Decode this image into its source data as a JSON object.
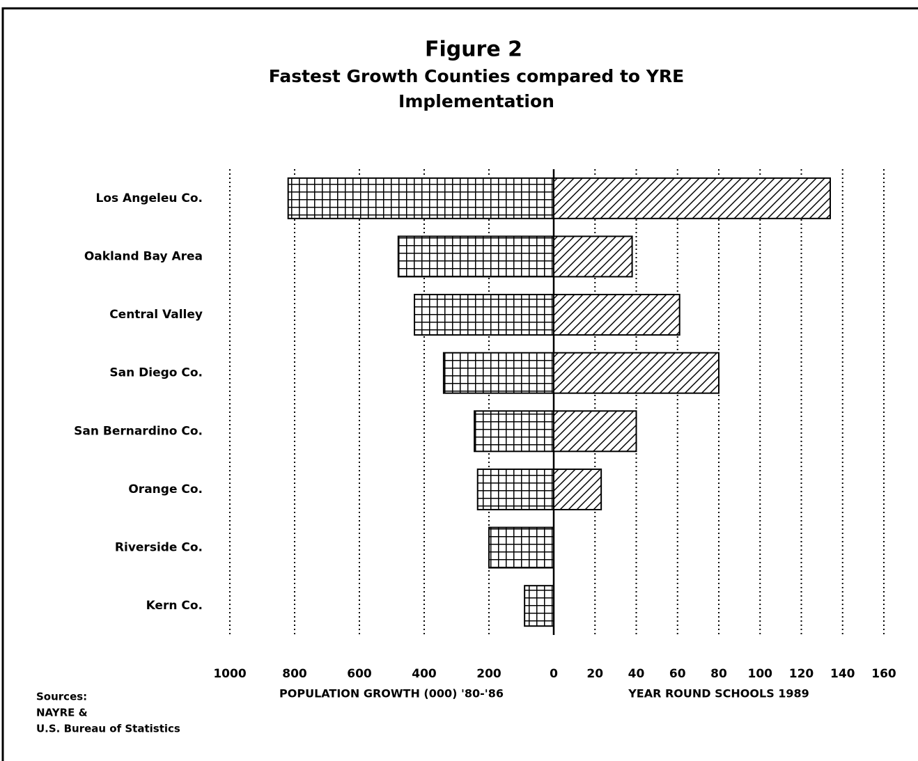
{
  "chart_data": {
    "type": "butterfly_bar",
    "title": "Figure 2",
    "subtitle": [
      "Fastest Growth Counties compared to YRE",
      "Implementation"
    ],
    "categories": [
      "Los Angeleu Co.",
      "Oakland Bay Area",
      "Central Valley",
      "San Diego Co.",
      "San Bernardino Co.",
      "Orange Co.",
      "Riverside Co.",
      "Kern Co."
    ],
    "series": [
      {
        "name": "POPULATION GROWTH (000) '80-'86",
        "color": "#000000",
        "pattern": "crosshatch",
        "axis": "x",
        "values": [
          820,
          480,
          430,
          340,
          245,
          235,
          200,
          90
        ]
      },
      {
        "name": "YEAR ROUND SCHOOLS 1989",
        "color": "#000000",
        "pattern": "diagonal",
        "axis": "x2",
        "values": [
          134,
          38,
          61,
          80,
          40,
          23,
          0,
          0
        ]
      }
    ],
    "xlim": [
      1000,
      0
    ],
    "xticks": [
      1000,
      800,
      600,
      400,
      200
    ],
    "x2lim": [
      0,
      160
    ],
    "x2ticks": [
      0,
      20,
      40,
      60,
      80,
      100,
      120,
      140,
      160
    ],
    "grid": true,
    "sources": [
      "Sources:",
      "NAYRE &",
      "U.S. Bureau of Statistics"
    ]
  }
}
